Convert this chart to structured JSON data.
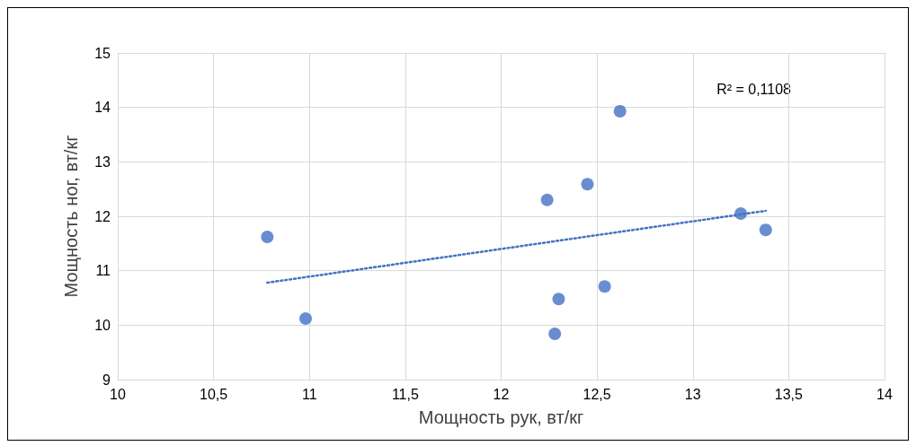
{
  "chart_data": {
    "type": "scatter",
    "xlabel": "Мощность рук, вт/кг",
    "ylabel": "Мощность ног, вт/кг",
    "xlim": [
      10,
      14
    ],
    "ylim": [
      9,
      15
    ],
    "xticks": [
      10,
      {
        "value": 10.5,
        "label": "10,5"
      },
      11,
      {
        "value": 11.5,
        "label": "11,5"
      },
      12,
      {
        "value": 12.5,
        "label": "12,5"
      },
      13,
      {
        "value": 13.5,
        "label": "13,5"
      },
      14
    ],
    "yticks": [
      9,
      10,
      11,
      12,
      13,
      14,
      15
    ],
    "grid": true,
    "annotations": [
      "R² = 0,1108"
    ],
    "series": [
      {
        "color": "#4472c4",
        "marker": "circle",
        "x": [
          10.78,
          10.98,
          12.24,
          12.45,
          12.62,
          12.28,
          12.3,
          12.54,
          13.25,
          13.38
        ],
        "values": [
          11.62,
          10.12,
          12.3,
          12.59,
          13.93,
          9.84,
          10.48,
          10.71,
          12.05,
          11.75
        ]
      },
      {
        "type": "line",
        "color": "#4472c4",
        "marker": "none",
        "line_style": "dotted",
        "x": [
          10.78,
          13.38
        ],
        "values": [
          10.78,
          12.1
        ]
      }
    ]
  }
}
